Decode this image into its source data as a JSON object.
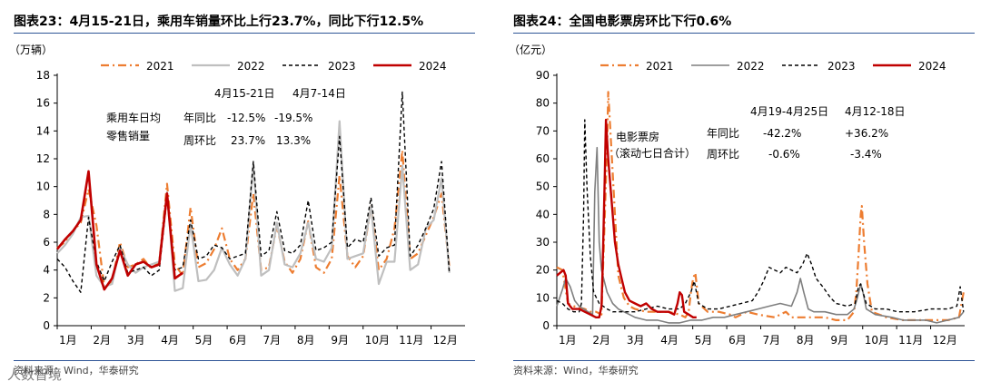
{
  "watermark": "人数智境",
  "chart_data": [
    {
      "type": "line",
      "title": "图表23：4月15-21日，乘用车销量环比上行23.7%，同比下行12.5%",
      "ylabel": "（万辆）",
      "xlabel": "",
      "ylim": [
        0,
        18
      ],
      "yticks": [
        0,
        2,
        4,
        6,
        8,
        10,
        12,
        14,
        16,
        18
      ],
      "grid": false,
      "legend_position": "top",
      "month_labels": [
        "1月",
        "2月",
        "3月",
        "4月",
        "5月",
        "6月",
        "7月",
        "8月",
        "9月",
        "10月",
        "11月",
        "12月"
      ],
      "x_unit": "week",
      "x_range": [
        0,
        52
      ],
      "source": "资料来源：Wind，华泰研究",
      "series": [
        {
          "name": "2021",
          "color": "#ED7D31",
          "style": "dashdot",
          "width": 2.2,
          "values": [
            5.6,
            6.0,
            6.8,
            7.4,
            9.8,
            7.2,
            2.8,
            3.2,
            6.0,
            4.2,
            4.4,
            4.8,
            4.1,
            4.6,
            10.2,
            4.4,
            3.6,
            8.5,
            4.2,
            4.5,
            5.5,
            7.0,
            4.8,
            4.0,
            4.8,
            9.5,
            4.0,
            4.2,
            7.2,
            4.6,
            3.8,
            4.8,
            7.5,
            4.2,
            3.8,
            4.8,
            10.8,
            5.0,
            4.2,
            5.0,
            8.6,
            4.0,
            4.8,
            7.0,
            12.6,
            4.8,
            5.2,
            6.5,
            7.8,
            9.5,
            4.2
          ]
        },
        {
          "name": "2022",
          "color": "#BFBFBF",
          "style": "solid",
          "width": 2.2,
          "values": [
            5.2,
            5.8,
            6.6,
            7.8,
            7.9,
            3.6,
            2.8,
            3.0,
            5.6,
            4.4,
            3.8,
            4.2,
            4.4,
            4.6,
            9.6,
            2.5,
            2.7,
            7.3,
            3.2,
            3.3,
            4.0,
            5.6,
            4.4,
            3.6,
            4.8,
            11.6,
            3.6,
            4.0,
            7.4,
            4.4,
            4.2,
            5.2,
            7.4,
            4.8,
            4.6,
            5.6,
            14.7,
            4.8,
            5.0,
            5.2,
            8.6,
            3.0,
            4.6,
            4.6,
            11.5,
            4.0,
            4.4,
            7.0,
            7.6,
            10.6,
            3.8
          ]
        },
        {
          "name": "2023",
          "color": "#000000",
          "style": "dash",
          "width": 1.4,
          "values": [
            4.8,
            4.2,
            3.2,
            2.4,
            7.8,
            4.6,
            3.2,
            4.6,
            5.8,
            3.8,
            4.0,
            4.2,
            3.6,
            4.0,
            9.2,
            4.0,
            4.2,
            7.6,
            4.8,
            5.0,
            5.8,
            5.6,
            4.8,
            5.0,
            5.2,
            11.8,
            5.0,
            5.4,
            8.2,
            5.4,
            5.2,
            5.8,
            9.0,
            5.4,
            5.6,
            6.0,
            13.6,
            5.6,
            6.2,
            6.0,
            9.2,
            5.0,
            5.6,
            5.8,
            16.8,
            5.0,
            5.8,
            7.0,
            8.4,
            11.8,
            3.8
          ]
        },
        {
          "name": "2024",
          "color": "#C00000",
          "style": "solid",
          "width": 2.6,
          "values": [
            5.5,
            6.2,
            6.8,
            7.6,
            11.1,
            4.4,
            2.6,
            3.4,
            5.4,
            3.6,
            4.4,
            4.6,
            4.2,
            4.4,
            9.5,
            3.4,
            3.8
          ]
        }
      ],
      "annotation": {
        "header1": "4月15-21日",
        "header2": "4月7-14日",
        "label1": "乘用车日均",
        "label2": "零售销量",
        "row1_label": "年同比",
        "row1_v1": "-12.5%",
        "row1_v2": "-19.5%",
        "row2_label": "周环比",
        "row2_v1": "23.7%",
        "row2_v2": "13.3%"
      }
    },
    {
      "type": "line",
      "title": "图表24：全国电影票房环比下行0.6%",
      "ylabel": "（亿元）",
      "xlabel": "",
      "ylim": [
        0,
        90
      ],
      "yticks": [
        0,
        10,
        20,
        30,
        40,
        50,
        60,
        70,
        80,
        90
      ],
      "grid": false,
      "legend_position": "top",
      "month_labels": [
        "1月",
        "2月",
        "3月",
        "4月",
        "5月",
        "6月",
        "7月",
        "8月",
        "9月",
        "10月",
        "11月",
        "12月"
      ],
      "x_unit": "day-of-year",
      "x_range": [
        0,
        365
      ],
      "source": "资料来源：Wind，华泰研究",
      "series": [
        {
          "name": "2021",
          "color": "#ED7D31",
          "style": "dashdot",
          "width": 2.2,
          "points": [
            [
              0,
              21
            ],
            [
              5,
              20
            ],
            [
              10,
              8
            ],
            [
              15,
              7
            ],
            [
              25,
              6
            ],
            [
              30,
              5
            ],
            [
              35,
              5
            ],
            [
              40,
              4
            ],
            [
              43,
              40
            ],
            [
              45,
              65
            ],
            [
              46,
              84
            ],
            [
              48,
              70
            ],
            [
              52,
              40
            ],
            [
              55,
              18
            ],
            [
              60,
              10
            ],
            [
              65,
              7
            ],
            [
              70,
              6
            ],
            [
              80,
              5
            ],
            [
              90,
              5
            ],
            [
              100,
              5
            ],
            [
              110,
              4
            ],
            [
              115,
              3
            ],
            [
              118,
              5
            ],
            [
              120,
              12
            ],
            [
              122,
              17
            ],
            [
              124,
              19
            ],
            [
              127,
              8
            ],
            [
              135,
              5
            ],
            [
              145,
              5
            ],
            [
              155,
              4
            ],
            [
              160,
              3
            ],
            [
              170,
              5
            ],
            [
              180,
              4
            ],
            [
              195,
              3
            ],
            [
              200,
              4
            ],
            [
              205,
              5
            ],
            [
              210,
              3
            ],
            [
              220,
              3
            ],
            [
              230,
              3
            ],
            [
              240,
              3
            ],
            [
              250,
              2
            ],
            [
              260,
              2
            ],
            [
              266,
              5
            ],
            [
              268,
              12
            ],
            [
              270,
              25
            ],
            [
              272,
              40
            ],
            [
              273,
              43
            ],
            [
              275,
              30
            ],
            [
              278,
              15
            ],
            [
              282,
              5
            ],
            [
              295,
              3
            ],
            [
              310,
              2
            ],
            [
              325,
              2
            ],
            [
              340,
              2
            ],
            [
              350,
              2
            ],
            [
              360,
              3
            ],
            [
              364,
              12
            ]
          ]
        },
        {
          "name": "2022",
          "color": "#7F7F7F",
          "style": "solid",
          "width": 1.6,
          "points": [
            [
              0,
              7
            ],
            [
              5,
              13
            ],
            [
              8,
              17
            ],
            [
              12,
              14
            ],
            [
              16,
              9
            ],
            [
              20,
              7
            ],
            [
              28,
              5
            ],
            [
              32,
              4
            ],
            [
              34,
              48
            ],
            [
              36,
              64
            ],
            [
              38,
              30
            ],
            [
              40,
              20
            ],
            [
              45,
              12
            ],
            [
              50,
              8
            ],
            [
              55,
              6
            ],
            [
              60,
              5
            ],
            [
              65,
              4
            ],
            [
              70,
              3
            ],
            [
              80,
              2
            ],
            [
              90,
              2
            ],
            [
              100,
              1
            ],
            [
              110,
              1
            ],
            [
              120,
              2
            ],
            [
              130,
              2
            ],
            [
              140,
              3
            ],
            [
              150,
              3
            ],
            [
              160,
              4
            ],
            [
              170,
              5
            ],
            [
              180,
              6
            ],
            [
              190,
              7
            ],
            [
              200,
              8
            ],
            [
              210,
              7
            ],
            [
              215,
              12
            ],
            [
              218,
              17
            ],
            [
              221,
              12
            ],
            [
              225,
              6
            ],
            [
              230,
              5
            ],
            [
              240,
              5
            ],
            [
              250,
              4
            ],
            [
              260,
              4
            ],
            [
              266,
              6
            ],
            [
              269,
              10
            ],
            [
              272,
              15
            ],
            [
              274,
              12
            ],
            [
              277,
              6
            ],
            [
              285,
              4
            ],
            [
              300,
              3
            ],
            [
              310,
              2
            ],
            [
              320,
              2
            ],
            [
              330,
              2
            ],
            [
              340,
              1
            ],
            [
              350,
              2
            ],
            [
              360,
              3
            ],
            [
              364,
              5
            ]
          ]
        },
        {
          "name": "2023",
          "color": "#000000",
          "style": "dash",
          "width": 1.4,
          "points": [
            [
              0,
              9
            ],
            [
              5,
              8
            ],
            [
              10,
              6
            ],
            [
              15,
              5
            ],
            [
              20,
              5
            ],
            [
              22,
              8
            ],
            [
              24,
              40
            ],
            [
              25,
              74
            ],
            [
              27,
              50
            ],
            [
              30,
              25
            ],
            [
              33,
              12
            ],
            [
              38,
              8
            ],
            [
              45,
              6
            ],
            [
              50,
              5
            ],
            [
              60,
              5
            ],
            [
              70,
              5
            ],
            [
              80,
              6
            ],
            [
              90,
              7
            ],
            [
              100,
              6
            ],
            [
              110,
              6
            ],
            [
              115,
              8
            ],
            [
              120,
              12
            ],
            [
              123,
              16
            ],
            [
              127,
              8
            ],
            [
              135,
              6
            ],
            [
              145,
              6
            ],
            [
              155,
              7
            ],
            [
              165,
              8
            ],
            [
              175,
              9
            ],
            [
              180,
              12
            ],
            [
              185,
              16
            ],
            [
              190,
              21
            ],
            [
              195,
              20
            ],
            [
              200,
              19
            ],
            [
              205,
              21
            ],
            [
              210,
              20
            ],
            [
              215,
              19
            ],
            [
              220,
              22
            ],
            [
              224,
              26
            ],
            [
              228,
              22
            ],
            [
              232,
              17
            ],
            [
              238,
              14
            ],
            [
              245,
              10
            ],
            [
              250,
              8
            ],
            [
              260,
              7
            ],
            [
              267,
              8
            ],
            [
              270,
              14
            ],
            [
              272,
              15
            ],
            [
              274,
              12
            ],
            [
              277,
              8
            ],
            [
              285,
              6
            ],
            [
              295,
              6
            ],
            [
              305,
              5
            ],
            [
              320,
              5
            ],
            [
              335,
              6
            ],
            [
              350,
              6
            ],
            [
              358,
              7
            ],
            [
              361,
              14
            ],
            [
              364,
              5
            ]
          ]
        },
        {
          "name": "2024",
          "color": "#C00000",
          "style": "solid",
          "width": 2.4,
          "points": [
            [
              0,
              18
            ],
            [
              3,
              19
            ],
            [
              6,
              20
            ],
            [
              8,
              18
            ],
            [
              10,
              8
            ],
            [
              14,
              6
            ],
            [
              20,
              6
            ],
            [
              25,
              5
            ],
            [
              30,
              4
            ],
            [
              35,
              3
            ],
            [
              38,
              3
            ],
            [
              40,
              7
            ],
            [
              41,
              20
            ],
            [
              43,
              55
            ],
            [
              44,
              74
            ],
            [
              46,
              60
            ],
            [
              49,
              45
            ],
            [
              52,
              30
            ],
            [
              55,
              22
            ],
            [
              58,
              17
            ],
            [
              61,
              12
            ],
            [
              65,
              9
            ],
            [
              70,
              8
            ],
            [
              75,
              7
            ],
            [
              80,
              8
            ],
            [
              85,
              6
            ],
            [
              90,
              5
            ],
            [
              95,
              5
            ],
            [
              100,
              5
            ],
            [
              105,
              4
            ],
            [
              108,
              8
            ],
            [
              110,
              12
            ],
            [
              112,
              11
            ],
            [
              114,
              5
            ],
            [
              118,
              4
            ],
            [
              122,
              3
            ],
            [
              125,
              3
            ]
          ]
        }
      ],
      "annotation": {
        "header1": "4月19-4月25日",
        "header2": "4月12-18日",
        "label1": "电影票房",
        "label2": "（滚动七日合计）",
        "row1_label": "年同比",
        "row1_v1": "-42.2%",
        "row1_v2": "+36.2%",
        "row2_label": "周环比",
        "row2_v1": "-0.6%",
        "row2_v2": "-3.4%"
      }
    }
  ]
}
